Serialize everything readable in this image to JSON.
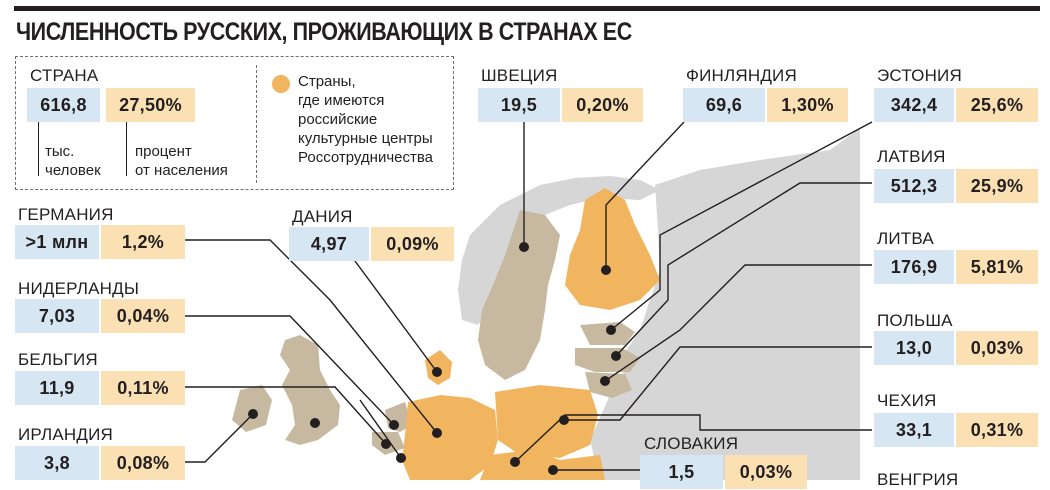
{
  "title": "ЧИСЛЕННОСТЬ РУССКИХ, ПРОЖИВАЮЩИХ В СТРАНАХ ЕС",
  "colors": {
    "highlight_country": "#f2b55f",
    "other_eu_country": "#c7b9a0",
    "non_eu_land": "#d6d6d6",
    "sea": "#ffffff",
    "value_cell": "#d6e6f2",
    "percent_cell": "#fbe0b3"
  },
  "legend": {
    "country_header": "СТРАНА",
    "sample_value": "616,8",
    "sample_percent": "27,50%",
    "value_caption": "тыс.\nчеловек",
    "percent_caption": "процент\nот населения",
    "marker_caption": "Страны,\nгде имеются\nроссийские\nкультурные центры\nРоссотрудничества",
    "marker_icon": "orange-dot-icon"
  },
  "countries": {
    "sweden": {
      "name": "ШВЕЦИЯ",
      "value": "19,5",
      "percent": "0,20%"
    },
    "finland": {
      "name": "ФИНЛЯНДИЯ",
      "value": "69,6",
      "percent": "1,30%"
    },
    "estonia": {
      "name": "ЭСТОНИЯ",
      "value": "342,4",
      "percent": "25,6%"
    },
    "latvia": {
      "name": "ЛАТВИЯ",
      "value": "512,3",
      "percent": "25,9%"
    },
    "lithuania": {
      "name": "ЛИТВА",
      "value": "176,9",
      "percent": "5,81%"
    },
    "poland": {
      "name": "ПОЛЬША",
      "value": "13,0",
      "percent": "0,03%"
    },
    "czechia": {
      "name": "ЧЕХИЯ",
      "value": "33,1",
      "percent": "0,31%"
    },
    "hungary": {
      "name": "ВЕНГРИЯ"
    },
    "slovakia": {
      "name": "СЛОВАКИЯ",
      "value": "1,5",
      "percent": "0,03%"
    },
    "denmark": {
      "name": "ДАНИЯ",
      "value": "4,97",
      "percent": "0,09%"
    },
    "germany": {
      "name": "ГЕРМАНИЯ",
      "value": ">1 млн",
      "percent": "1,2%"
    },
    "netherlands": {
      "name": "НИДЕРЛАНДЫ",
      "value": "7,03",
      "percent": "0,04%"
    },
    "belgium": {
      "name": "БЕЛЬГИЯ",
      "value": "11,9",
      "percent": "0,11%"
    },
    "ireland": {
      "name": "ИРЛАНДИЯ",
      "value": "3,8",
      "percent": "0,08%"
    }
  }
}
